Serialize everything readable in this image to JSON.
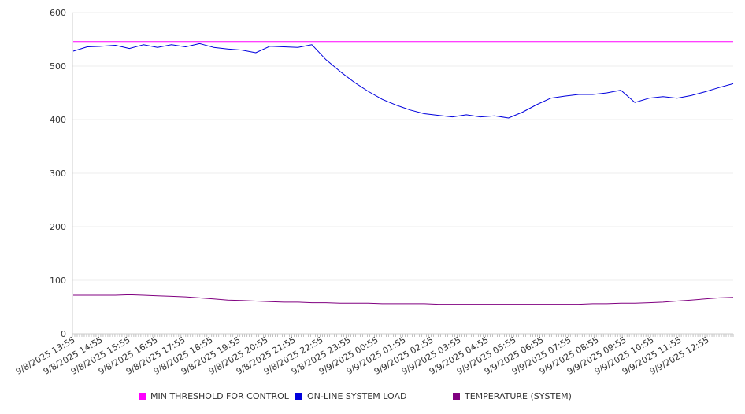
{
  "chart_data": {
    "type": "line",
    "title": "",
    "xlabel": "",
    "ylabel": "",
    "ylim": [
      0,
      600
    ],
    "y_ticks": [
      "0",
      "100",
      "200",
      "300",
      "400",
      "500",
      "600"
    ],
    "x_ticks": [
      "9/8/2025 13:55",
      "9/8/2025 14:55",
      "9/8/2025 15:55",
      "9/8/2025 16:55",
      "9/8/2025 17:55",
      "9/8/2025 18:55",
      "9/8/2025 19:55",
      "9/8/2025 20:55",
      "9/8/2025 21:55",
      "9/8/2025 22:55",
      "9/8/2025 23:55",
      "9/9/2025 00:55",
      "9/9/2025 01:55",
      "9/9/2025 02:55",
      "9/9/2025 03:55",
      "9/9/2025 04:55",
      "9/9/2025 05:55",
      "9/9/2025 06:55",
      "9/9/2025 07:55",
      "9/9/2025 08:55",
      "9/9/2025 09:55",
      "9/9/2025 10:55",
      "9/9/2025 11:55",
      "9/9/2025 12:55"
    ],
    "grid": true,
    "legend_position": "bottom",
    "x": [
      "9/8/2025 13:55",
      "9/8/2025 14:25",
      "9/8/2025 14:55",
      "9/8/2025 15:25",
      "9/8/2025 15:55",
      "9/8/2025 16:25",
      "9/8/2025 16:55",
      "9/8/2025 17:25",
      "9/8/2025 17:55",
      "9/8/2025 18:25",
      "9/8/2025 18:55",
      "9/8/2025 19:25",
      "9/8/2025 19:55",
      "9/8/2025 20:25",
      "9/8/2025 20:55",
      "9/8/2025 21:25",
      "9/8/2025 21:55",
      "9/8/2025 22:25",
      "9/8/2025 22:55",
      "9/8/2025 23:25",
      "9/8/2025 23:55",
      "9/9/2025 00:25",
      "9/9/2025 00:55",
      "9/9/2025 01:25",
      "9/9/2025 01:55",
      "9/9/2025 02:25",
      "9/9/2025 02:55",
      "9/9/2025 03:25",
      "9/9/2025 03:55",
      "9/9/2025 04:25",
      "9/9/2025 04:55",
      "9/9/2025 05:25",
      "9/9/2025 05:55",
      "9/9/2025 06:25",
      "9/9/2025 06:55",
      "9/9/2025 07:25",
      "9/9/2025 07:55",
      "9/9/2025 08:25",
      "9/9/2025 08:55",
      "9/9/2025 09:25",
      "9/9/2025 09:55",
      "9/9/2025 10:25",
      "9/9/2025 10:55",
      "9/9/2025 11:25",
      "9/9/2025 11:55",
      "9/9/2025 12:25",
      "9/9/2025 12:55",
      "9/9/2025 13:25"
    ],
    "series": [
      {
        "name": "MIN THRESHOLD FOR CONTROL",
        "color": "#ff00ff",
        "values": [
          546,
          546,
          546,
          546,
          546,
          546,
          546,
          546,
          546,
          546,
          546,
          546,
          546,
          546,
          546,
          546,
          546,
          546,
          546,
          546,
          546,
          546,
          546,
          546,
          546,
          546,
          546,
          546,
          546,
          546,
          546,
          546,
          546,
          546,
          546,
          546,
          546,
          546,
          546,
          546,
          546,
          546,
          546,
          546,
          546,
          546,
          546,
          546
        ]
      },
      {
        "name": "ON-LINE SYSTEM LOAD",
        "color": "#0000dd",
        "values": [
          528,
          536,
          537,
          539,
          533,
          540,
          535,
          540,
          536,
          542,
          535,
          532,
          530,
          525,
          537,
          536,
          535,
          540,
          512,
          490,
          470,
          453,
          438,
          427,
          418,
          411,
          408,
          405,
          409,
          405,
          407,
          403,
          414,
          428,
          440,
          444,
          447,
          447,
          450,
          455,
          432,
          440,
          443,
          440,
          445,
          452,
          460,
          467
        ]
      },
      {
        "name": "TEMPERATURE (SYSTEM)",
        "color": "#800080",
        "values": [
          72,
          72,
          72,
          72,
          73,
          72,
          71,
          70,
          69,
          67,
          65,
          63,
          62,
          61,
          60,
          59,
          59,
          58,
          58,
          57,
          57,
          57,
          56,
          56,
          56,
          56,
          55,
          55,
          55,
          55,
          55,
          55,
          55,
          55,
          55,
          55,
          55,
          56,
          56,
          57,
          57,
          58,
          59,
          61,
          63,
          65,
          67,
          68
        ]
      }
    ]
  }
}
